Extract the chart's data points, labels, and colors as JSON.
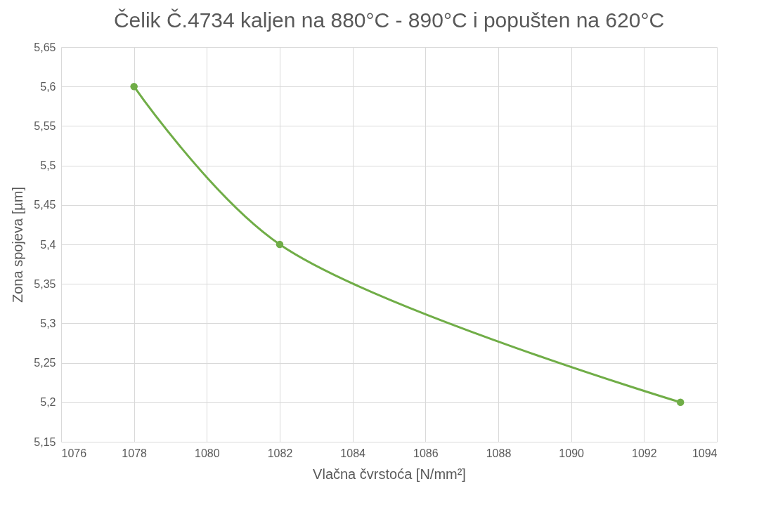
{
  "chart_data": {
    "type": "line",
    "title": "Čelik Č.4734 kaljen na 880°C - 890°C i popušten na 620°C",
    "xlabel": "Vlačna čvrstoća [N/mm²]",
    "ylabel": "Zona spojeva [µm]",
    "x": [
      1078,
      1082,
      1093
    ],
    "series": [
      {
        "color": "#70ad47",
        "values": [
          5.6,
          5.4,
          5.2
        ]
      }
    ],
    "xlim": [
      1076,
      1094
    ],
    "xticks": [
      1076,
      1078,
      1080,
      1082,
      1084,
      1086,
      1088,
      1090,
      1092,
      1094
    ],
    "ylim": [
      5.15,
      5.65
    ],
    "yticks": [
      {
        "value": 5.15,
        "label": "5,15"
      },
      {
        "value": 5.2,
        "label": "5,2"
      },
      {
        "value": 5.25,
        "label": "5,25"
      },
      {
        "value": 5.3,
        "label": "5,3"
      },
      {
        "value": 5.35,
        "label": "5,35"
      },
      {
        "value": 5.4,
        "label": "5,4"
      },
      {
        "value": 5.45,
        "label": "5,45"
      },
      {
        "value": 5.5,
        "label": "5,5"
      },
      {
        "value": 5.55,
        "label": "5,55"
      },
      {
        "value": 5.6,
        "label": "5,6"
      },
      {
        "value": 5.65,
        "label": "5,65"
      }
    ],
    "grid": true,
    "marker": "circle"
  }
}
